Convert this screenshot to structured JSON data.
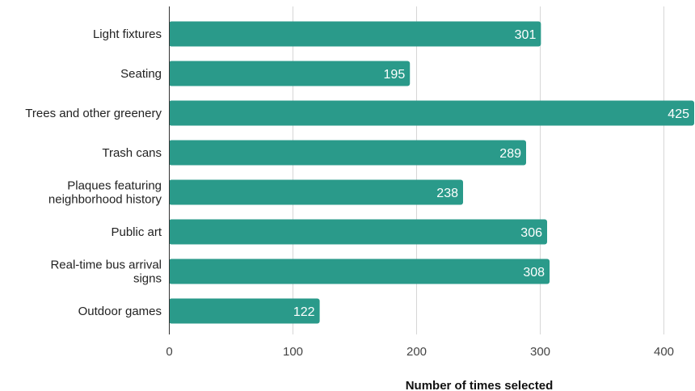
{
  "chart_data": {
    "type": "bar",
    "orientation": "horizontal",
    "categories": [
      "Light fixtures",
      "Seating",
      "Trees and other greenery",
      "Trash cans",
      "Plaques featuring neighborhood history",
      "Public art",
      "Real-time bus arrival signs",
      "Outdoor games"
    ],
    "category_lines": [
      [
        "Light fixtures"
      ],
      [
        "Seating"
      ],
      [
        "Trees and other greenery"
      ],
      [
        "Trash cans"
      ],
      [
        "Plaques featuring",
        "neighborhood history"
      ],
      [
        "Public art"
      ],
      [
        "Real-time bus arrival",
        "signs"
      ],
      [
        "Outdoor games"
      ]
    ],
    "values": [
      301,
      195,
      425,
      289,
      238,
      306,
      308,
      122
    ],
    "xticks": [
      0,
      100,
      200,
      300,
      400
    ],
    "xlim": [
      0,
      425
    ],
    "xlabel": "Number of times selected",
    "ylabel": "",
    "title": "",
    "bar_color": "#2a9a8a",
    "grid": true,
    "legend": "none"
  }
}
